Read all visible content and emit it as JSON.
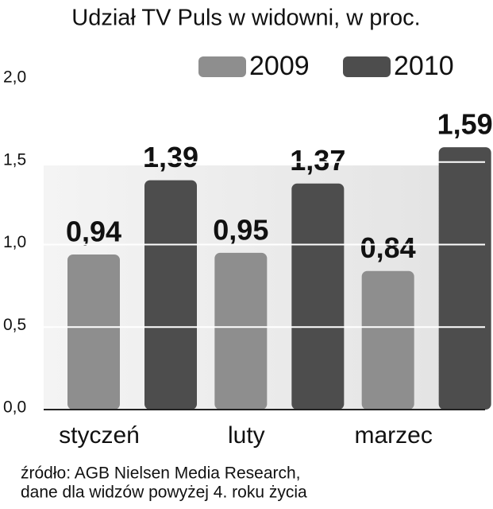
{
  "chart_data": {
    "type": "bar",
    "title": "Udział TV Puls w widowni, w proc.",
    "categories": [
      "styczeń",
      "luty",
      "marzec"
    ],
    "series": [
      {
        "name": "2009",
        "color": "#8e8e8e",
        "values": [
          0.94,
          0.95,
          0.84
        ],
        "value_labels": [
          "0,94",
          "0,95",
          "0,84"
        ]
      },
      {
        "name": "2010",
        "color": "#4d4d4d",
        "values": [
          1.39,
          1.37,
          1.59
        ],
        "value_labels": [
          "1,39",
          "1,37",
          "1,59"
        ]
      }
    ],
    "ylim": [
      0,
      2
    ],
    "yticks": [
      {
        "value": 0,
        "label": "0,0"
      },
      {
        "value": 0.5,
        "label": "0,5"
      },
      {
        "value": 1,
        "label": "1,0"
      },
      {
        "value": 1.5,
        "label": "1,5"
      },
      {
        "value": 2,
        "label": "2,0"
      }
    ],
    "grid": true,
    "legend": "top-right",
    "source": [
      "źródło: AGB Nielsen Media Research,",
      "dane dla widzów powyżej 4. roku życia"
    ]
  }
}
